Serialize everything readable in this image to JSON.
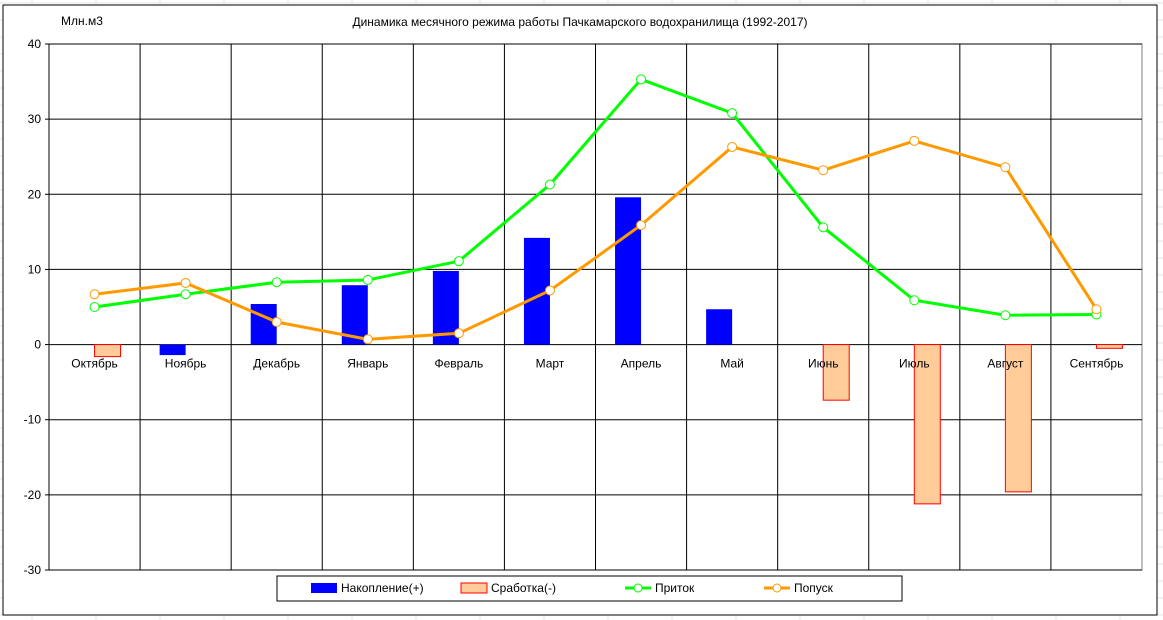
{
  "chart_data": {
    "type": "bar",
    "title": "Динамика месячного режима работы Пачкамарского водохранилища (1992-2017)",
    "ylabel": "Млн.м3",
    "xlabel": "",
    "ylim": [
      -30,
      40
    ],
    "yticks": [
      40,
      30,
      20,
      10,
      0,
      -10,
      -20,
      -30
    ],
    "grid": true,
    "legend_position": "bottom",
    "categories": [
      "Октябрь",
      "Ноябрь",
      "Декабрь",
      "Январь",
      "Февраль",
      "Март",
      "Апрель",
      "Май",
      "Июнь",
      "Июль",
      "Август",
      "Сентябрь"
    ],
    "series": [
      {
        "name": "Накопление(+)",
        "kind": "bar",
        "color": "#0000ff",
        "values": [
          null,
          -1.4,
          5.4,
          7.9,
          9.8,
          14.2,
          19.6,
          4.7,
          null,
          null,
          null,
          null
        ]
      },
      {
        "name": "Сработка(-)",
        "kind": "bar",
        "color": "#ffcc99",
        "stroke": "#ff0000",
        "values": [
          -1.6,
          null,
          null,
          null,
          null,
          null,
          null,
          null,
          -7.4,
          -21.2,
          -19.6,
          -0.5
        ]
      },
      {
        "name": "Приток",
        "kind": "line",
        "color": "#00ff00",
        "values": [
          5.0,
          6.7,
          8.3,
          8.6,
          11.1,
          21.3,
          35.3,
          30.8,
          15.6,
          5.9,
          3.9,
          4.0
        ]
      },
      {
        "name": "Попуск",
        "kind": "line",
        "color": "#ff9900",
        "values": [
          6.7,
          8.2,
          3.0,
          0.7,
          1.5,
          7.2,
          15.9,
          26.3,
          23.2,
          27.1,
          23.6,
          4.7
        ]
      }
    ]
  }
}
